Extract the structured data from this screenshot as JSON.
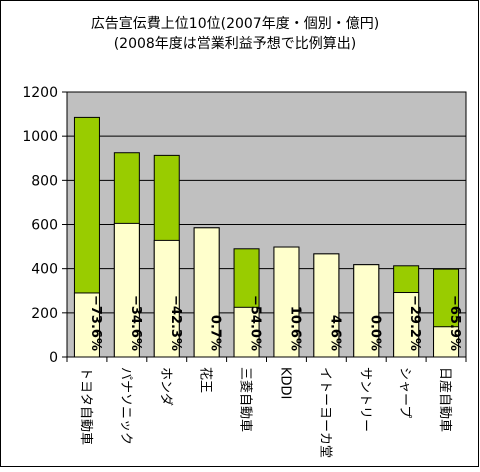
{
  "chart_data": {
    "type": "bar",
    "title": "広告宣伝費上位10位(2007年度・個別・億円)",
    "subtitle": "(2008年度は営業利益予想で比例算出)",
    "categories": [
      "トヨタ自動車",
      "パナソニック",
      "ホンダ",
      "花王",
      "三菱自動車",
      "KDDI",
      "イトーヨーカ堂",
      "サントリー",
      "シャープ",
      "日産自動車"
    ],
    "series": [
      {
        "values": [
          1085,
          925,
          913,
          585,
          490,
          498,
          467,
          418,
          413,
          398
        ]
      },
      {
        "values": [
          290,
          605,
          528,
          585,
          225,
          498,
          467,
          418,
          292,
          137
        ]
      }
    ],
    "data_labels": [
      "−73.6%",
      "−34.6%",
      "−42.3%",
      "0.7%",
      "−54.0%",
      "10.6%",
      "4.6%",
      "0.0%",
      "−29.2%",
      "−65.9%"
    ],
    "ylim": [
      0,
      1200
    ],
    "yticks": [
      0,
      200,
      400,
      600,
      800,
      1000,
      1200
    ],
    "grid": true,
    "colors": {
      "bar_2007": "#99cc00",
      "bar_2008": "#ffffcc",
      "plot_bg": "#c0c0c0",
      "border": "#000000"
    }
  }
}
